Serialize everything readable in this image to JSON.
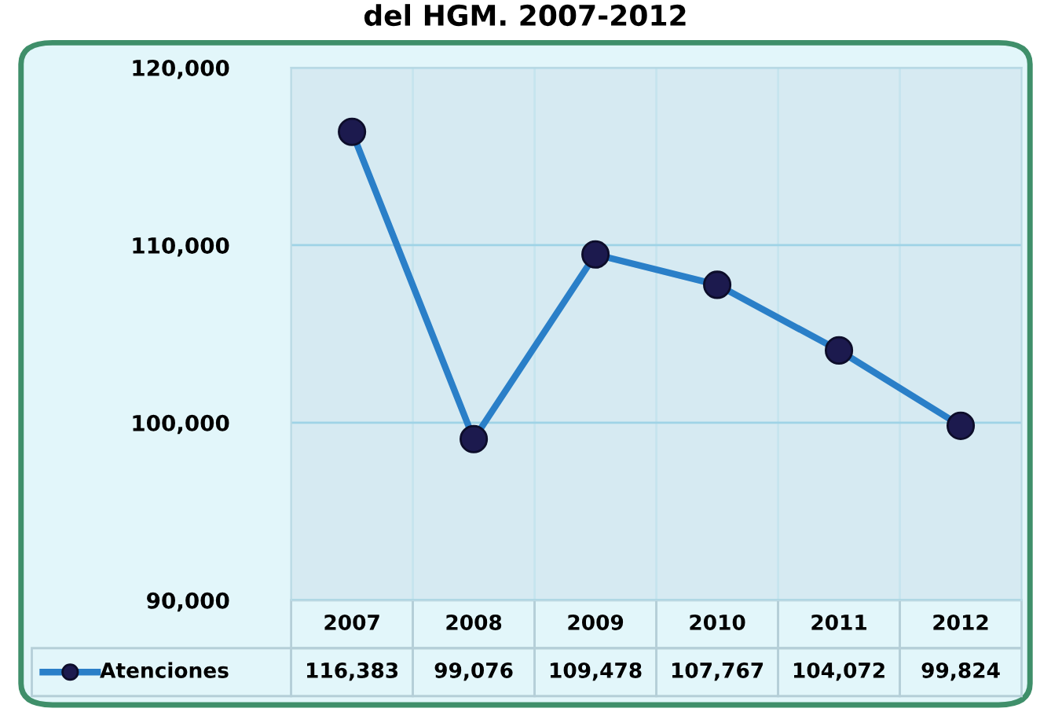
{
  "chart_data": {
    "type": "line",
    "title": "del HGM. 2007-2012",
    "categories": [
      "2007",
      "2008",
      "2009",
      "2010",
      "2011",
      "2012"
    ],
    "series": [
      {
        "name": "Atenciones",
        "color": "#2a7fc8",
        "values": [
          116383,
          99076,
          109478,
          107767,
          104072,
          99824
        ],
        "value_labels": [
          "116,383",
          "99,076",
          "109,478",
          "107,767",
          "104,072",
          "99,824"
        ]
      }
    ],
    "ylim": [
      90000,
      120000
    ],
    "yticks": [
      {
        "value": 90000,
        "label": "90,000"
      },
      {
        "value": 100000,
        "label": "100,000"
      },
      {
        "value": 110000,
        "label": "110,000"
      },
      {
        "value": 120000,
        "label": "120,000"
      }
    ],
    "grid": "y",
    "marker": "circle",
    "line_style": "solid",
    "legend": "bottom left"
  }
}
